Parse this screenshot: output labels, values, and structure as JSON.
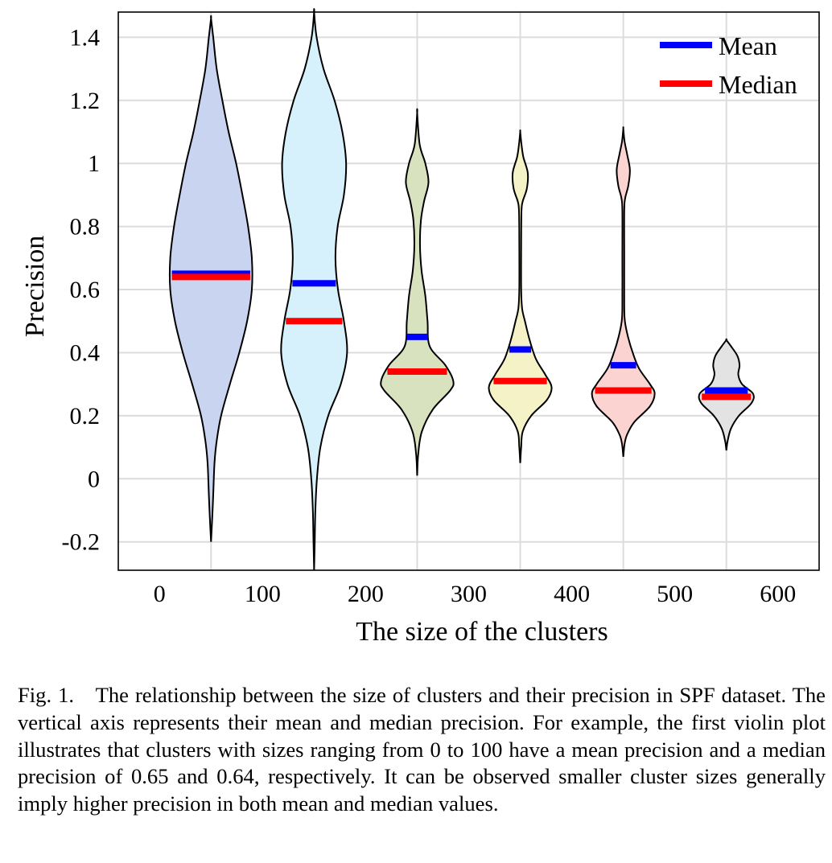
{
  "chart_data": {
    "type": "violin",
    "xlabel": "The size of the clusters",
    "ylabel": "Precision",
    "xlim": [
      -40,
      640
    ],
    "ylim": [
      -0.29,
      1.48
    ],
    "x_ticks": [
      0,
      100,
      200,
      300,
      400,
      500,
      600
    ],
    "x_tick_labels": [
      "0",
      "100",
      "200",
      "300",
      "400",
      "500",
      "600"
    ],
    "y_ticks": [
      -0.2,
      0,
      0.2,
      0.4,
      0.6,
      0.8,
      1.0,
      1.2,
      1.4
    ],
    "y_tick_labels": [
      "-0.2",
      "0",
      "0.2",
      "0.4",
      "0.6",
      "0.8",
      "1",
      "1.2",
      "1.4"
    ],
    "grid": true,
    "legend": {
      "position": "top-right",
      "entries": [
        {
          "label": "Mean",
          "color": "#0000ff"
        },
        {
          "label": "Median",
          "color": "#ff0000"
        }
      ]
    },
    "series": [
      {
        "range": "0-100",
        "center": 50,
        "mean": 0.65,
        "median": 0.64,
        "min": -0.2,
        "max": 1.46,
        "fill": "#c9d4f0",
        "profile": [
          [
            -0.2,
            0
          ],
          [
            -0.12,
            0.4
          ],
          [
            -0.05,
            0.7
          ],
          [
            0.05,
            1.1
          ],
          [
            0.12,
            1.8
          ],
          [
            0.2,
            3.2
          ],
          [
            0.3,
            6
          ],
          [
            0.4,
            9
          ],
          [
            0.5,
            11.5
          ],
          [
            0.6,
            13
          ],
          [
            0.7,
            13
          ],
          [
            0.8,
            11.8
          ],
          [
            0.9,
            10
          ],
          [
            1.0,
            8
          ],
          [
            1.1,
            5.6
          ],
          [
            1.2,
            3.6
          ],
          [
            1.3,
            1.8
          ],
          [
            1.4,
            0.7
          ],
          [
            1.46,
            0
          ]
        ]
      },
      {
        "range": "100-200",
        "center": 150,
        "mean": 0.62,
        "median": 0.5,
        "min": -0.29,
        "max": 1.48,
        "fill": "#d6f1fc",
        "profile": [
          [
            -0.29,
            0
          ],
          [
            -0.2,
            0.2
          ],
          [
            -0.1,
            0.4
          ],
          [
            0,
            0.9
          ],
          [
            0.1,
            2
          ],
          [
            0.2,
            4.5
          ],
          [
            0.3,
            8.5
          ],
          [
            0.4,
            10.5
          ],
          [
            0.5,
            9.5
          ],
          [
            0.6,
            7.6
          ],
          [
            0.7,
            6.8
          ],
          [
            0.8,
            7.5
          ],
          [
            0.9,
            9.5
          ],
          [
            1.0,
            10.2
          ],
          [
            1.1,
            9
          ],
          [
            1.2,
            6.5
          ],
          [
            1.3,
            3
          ],
          [
            1.4,
            0.8
          ],
          [
            1.48,
            0
          ]
        ]
      },
      {
        "range": "200-300",
        "center": 250,
        "mean": 0.45,
        "median": 0.34,
        "min": 0.01,
        "max": 1.16,
        "fill": "#d9e2bf",
        "profile": [
          [
            0.01,
            0
          ],
          [
            0.08,
            0.35
          ],
          [
            0.15,
            1.5
          ],
          [
            0.22,
            5
          ],
          [
            0.28,
            10.5
          ],
          [
            0.31,
            11.5
          ],
          [
            0.36,
            9
          ],
          [
            0.42,
            4
          ],
          [
            0.5,
            3.3
          ],
          [
            0.58,
            2.6
          ],
          [
            0.66,
            1.4
          ],
          [
            0.74,
            0.9
          ],
          [
            0.82,
            1.2
          ],
          [
            0.88,
            2.2
          ],
          [
            0.94,
            3.6
          ],
          [
            1.0,
            2.6
          ],
          [
            1.06,
            0.8
          ],
          [
            1.16,
            0
          ]
        ]
      },
      {
        "range": "300-400",
        "center": 350,
        "mean": 0.41,
        "median": 0.31,
        "min": 0.05,
        "max": 1.1,
        "fill": "#f4f2c6",
        "profile": [
          [
            0.05,
            0
          ],
          [
            0.1,
            0.3
          ],
          [
            0.15,
            0.8
          ],
          [
            0.2,
            3.5
          ],
          [
            0.25,
            8.5
          ],
          [
            0.29,
            10
          ],
          [
            0.33,
            8
          ],
          [
            0.38,
            5
          ],
          [
            0.44,
            3
          ],
          [
            0.5,
            1.5
          ],
          [
            0.54,
            0.6
          ],
          [
            0.6,
            0.3
          ],
          [
            0.75,
            0.3
          ],
          [
            0.85,
            0.4
          ],
          [
            0.88,
            0.8
          ],
          [
            0.92,
            2.1
          ],
          [
            0.97,
            2.4
          ],
          [
            1.02,
            1
          ],
          [
            1.06,
            0.4
          ],
          [
            1.1,
            0
          ]
        ]
      },
      {
        "range": "400-500",
        "center": 450,
        "mean": 0.36,
        "median": 0.28,
        "min": 0.07,
        "max": 1.11,
        "fill": "#fbd3d1",
        "profile": [
          [
            0.07,
            0
          ],
          [
            0.11,
            0.4
          ],
          [
            0.14,
            1.2
          ],
          [
            0.18,
            3.5
          ],
          [
            0.23,
            8.5
          ],
          [
            0.27,
            10
          ],
          [
            0.3,
            8.5
          ],
          [
            0.35,
            5
          ],
          [
            0.4,
            3
          ],
          [
            0.45,
            1.5
          ],
          [
            0.5,
            0.5
          ],
          [
            0.55,
            0.3
          ],
          [
            0.7,
            0.3
          ],
          [
            0.85,
            0.3
          ],
          [
            0.89,
            0.6
          ],
          [
            0.93,
            1.6
          ],
          [
            0.98,
            2.1
          ],
          [
            1.03,
            1.2
          ],
          [
            1.07,
            0.4
          ],
          [
            1.11,
            0
          ]
        ]
      },
      {
        "range": "500-600",
        "center": 550,
        "mean": 0.28,
        "median": 0.26,
        "min": 0.09,
        "max": 0.44,
        "fill": "#e3e3e3",
        "profile": [
          [
            0.09,
            0
          ],
          [
            0.12,
            0.4
          ],
          [
            0.16,
            1.5
          ],
          [
            0.2,
            4
          ],
          [
            0.24,
            8
          ],
          [
            0.27,
            8.5
          ],
          [
            0.3,
            5
          ],
          [
            0.33,
            3.8
          ],
          [
            0.36,
            4.2
          ],
          [
            0.39,
            3.5
          ],
          [
            0.42,
            1.5
          ],
          [
            0.44,
            0
          ]
        ]
      }
    ]
  },
  "caption": "Fig. 1. The relationship between the size of clusters and their precision in SPF dataset. The vertical axis represents their mean and median precision. For example, the first violin plot illustrates that clusters with sizes ranging from 0 to 100 have a mean precision and a median precision of 0.65 and 0.64, respectively. It can be observed smaller cluster sizes generally imply higher precision in both mean and median values."
}
